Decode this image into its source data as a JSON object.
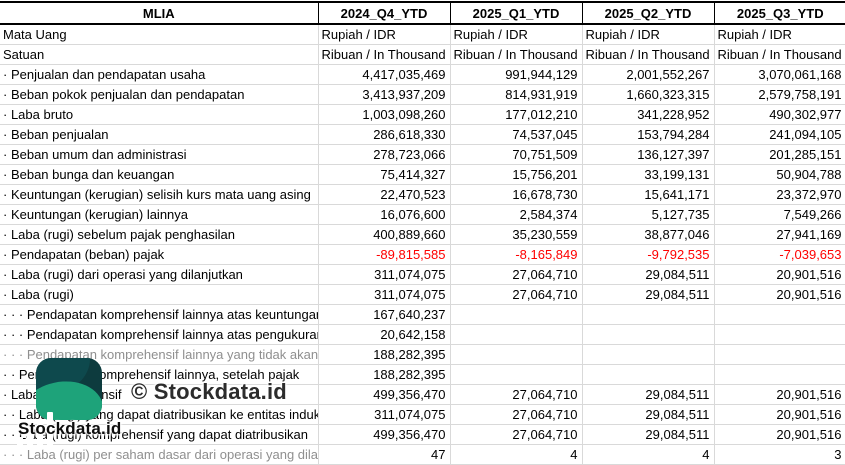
{
  "table": {
    "entity": "MLIA",
    "columns": [
      "2024_Q4_YTD",
      "2025_Q1_YTD",
      "2025_Q2_YTD",
      "2025_Q3_YTD"
    ],
    "rows": [
      {
        "label": "Mata Uang",
        "type": "text",
        "values": [
          "Rupiah / IDR",
          "Rupiah / IDR",
          "Rupiah / IDR",
          "Rupiah / IDR"
        ]
      },
      {
        "label": "Satuan",
        "type": "text",
        "values": [
          "Ribuan / In Thousand",
          "Ribuan / In Thousand",
          "Ribuan / In Thousand",
          "Ribuan / In Thousand"
        ]
      },
      {
        "label": "· Penjualan dan pendapatan usaha",
        "type": "num",
        "values": [
          "4,417,035,469",
          "991,944,129",
          "2,001,552,267",
          "3,070,061,168"
        ]
      },
      {
        "label": "· Beban pokok penjualan dan pendapatan",
        "type": "num",
        "values": [
          "3,413,937,209",
          "814,931,919",
          "1,660,323,315",
          "2,579,758,191"
        ]
      },
      {
        "label": "· Laba bruto",
        "type": "num",
        "values": [
          "1,003,098,260",
          "177,012,210",
          "341,228,952",
          "490,302,977"
        ]
      },
      {
        "label": "· Beban penjualan",
        "type": "num",
        "values": [
          "286,618,330",
          "74,537,045",
          "153,794,284",
          "241,094,105"
        ]
      },
      {
        "label": "· Beban umum dan administrasi",
        "type": "num",
        "values": [
          "278,723,066",
          "70,751,509",
          "136,127,397",
          "201,285,151"
        ]
      },
      {
        "label": "· Beban bunga dan keuangan",
        "type": "num",
        "values": [
          "75,414,327",
          "15,756,201",
          "33,199,131",
          "50,904,788"
        ]
      },
      {
        "label": "· Keuntungan (kerugian) selisih kurs mata uang asing",
        "type": "num",
        "values": [
          "22,470,523",
          "16,678,730",
          "15,641,171",
          "23,372,970"
        ]
      },
      {
        "label": "· Keuntungan (kerugian) lainnya",
        "type": "num",
        "values": [
          "16,076,600",
          "2,584,374",
          "5,127,735",
          "7,549,266"
        ]
      },
      {
        "label": "· Laba (rugi) sebelum pajak penghasilan",
        "type": "num",
        "values": [
          "400,889,660",
          "35,230,559",
          "38,877,046",
          "27,941,169"
        ]
      },
      {
        "label": "· Pendapatan (beban) pajak",
        "type": "num",
        "negative": true,
        "values": [
          "-89,815,585",
          "-8,165,849",
          "-9,792,535",
          "-7,039,653"
        ]
      },
      {
        "label": "· Laba (rugi) dari operasi yang dilanjutkan",
        "type": "num",
        "values": [
          "311,074,075",
          "27,064,710",
          "29,084,511",
          "20,901,516"
        ]
      },
      {
        "label": "· Laba (rugi)",
        "type": "num",
        "values": [
          "311,074,075",
          "27,064,710",
          "29,084,511",
          "20,901,516"
        ]
      },
      {
        "label": "· · · Pendapatan komprehensif lainnya atas keuntungan",
        "type": "num",
        "values": [
          "167,640,237",
          "",
          "",
          ""
        ]
      },
      {
        "label": "· · · Pendapatan komprehensif lainnya atas pengukuran",
        "type": "num",
        "values": [
          "20,642,158",
          "",
          "",
          ""
        ]
      },
      {
        "label": "· · · Pendapatan komprehensif lainnya yang tidak akan",
        "type": "num",
        "muted": true,
        "values": [
          "188,282,395",
          "",
          "",
          ""
        ]
      },
      {
        "label": "· · Pendapatan komprehensif lainnya, setelah pajak",
        "type": "num",
        "values": [
          "188,282,395",
          "",
          "",
          ""
        ]
      },
      {
        "label": "· Laba komprehensif",
        "type": "num",
        "values": [
          "499,356,470",
          "27,064,710",
          "29,084,511",
          "20,901,516"
        ]
      },
      {
        "label": "· · Laba (rugi) yang dapat diatribusikan ke entitas induk",
        "type": "num",
        "values": [
          "311,074,075",
          "27,064,710",
          "29,084,511",
          "20,901,516"
        ]
      },
      {
        "label": "· · Laba (rugi) komprehensif yang dapat diatribusikan",
        "type": "num",
        "values": [
          "499,356,470",
          "27,064,710",
          "29,084,511",
          "20,901,516"
        ]
      },
      {
        "label": "· · · Laba (rugi) per saham dasar dari operasi yang dilanjutkan",
        "type": "num",
        "muted": true,
        "values": [
          "47",
          "4",
          "4",
          "3"
        ]
      }
    ]
  },
  "watermark": {
    "copyright_text": "© Stockdata.id",
    "brand_name": "Stockdata.id"
  },
  "colors": {
    "negative_value": "#ff0000",
    "muted_label": "#8f8f8f",
    "grid_line": "#d9d9d9",
    "header_border": "#000000",
    "logo_dark_teal": "#0d3b3e",
    "logo_green": "#1ea37a"
  }
}
